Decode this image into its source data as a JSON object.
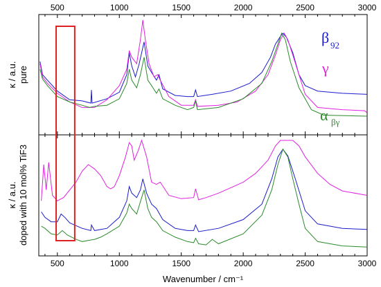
{
  "chart_data": [
    {
      "type": "line",
      "panel": "top",
      "ylabel_lines": [
        "κ / a.u.",
        "pure"
      ],
      "xlim": [
        350,
        3000
      ],
      "x_ticks": [
        500,
        1000,
        1500,
        2000,
        2500,
        3000
      ],
      "y_ticks": "none",
      "highlight_box_x": [
        490,
        640
      ],
      "legend": [
        {
          "main": "β",
          "sub": "92",
          "color": "#1a1acc"
        },
        {
          "main": "γ",
          "sub": "",
          "color": "#e020e0"
        },
        {
          "main": "α",
          "sub": "βγ",
          "color": "#2a8a2a"
        }
      ],
      "series": [
        {
          "name": "β92",
          "color": "#1a1acc",
          "points": [
            [
              360,
              0.62
            ],
            [
              380,
              0.5
            ],
            [
              420,
              0.45
            ],
            [
              500,
              0.35
            ],
            [
              600,
              0.27
            ],
            [
              700,
              0.26
            ],
            [
              770,
              0.24
            ],
            [
              775,
              0.36
            ],
            [
              780,
              0.24
            ],
            [
              900,
              0.28
            ],
            [
              1000,
              0.34
            ],
            [
              1060,
              0.5
            ],
            [
              1080,
              0.7
            ],
            [
              1100,
              0.58
            ],
            [
              1130,
              0.48
            ],
            [
              1160,
              0.6
            ],
            [
              1200,
              0.8
            ],
            [
              1230,
              0.58
            ],
            [
              1260,
              0.52
            ],
            [
              1300,
              0.45
            ],
            [
              1320,
              0.5
            ],
            [
              1350,
              0.37
            ],
            [
              1450,
              0.31
            ],
            [
              1550,
              0.3
            ],
            [
              1600,
              0.3
            ],
            [
              1615,
              0.36
            ],
            [
              1630,
              0.3
            ],
            [
              1750,
              0.32
            ],
            [
              1900,
              0.35
            ],
            [
              2050,
              0.42
            ],
            [
              2150,
              0.52
            ],
            [
              2220,
              0.66
            ],
            [
              2260,
              0.78
            ],
            [
              2300,
              0.85
            ],
            [
              2320,
              0.88
            ],
            [
              2350,
              0.84
            ],
            [
              2400,
              0.7
            ],
            [
              2450,
              0.5
            ],
            [
              2500,
              0.4
            ],
            [
              2600,
              0.35
            ],
            [
              2800,
              0.33
            ],
            [
              3000,
              0.32
            ]
          ]
        },
        {
          "name": "γ",
          "color": "#e020e0",
          "points": [
            [
              360,
              0.6
            ],
            [
              380,
              0.48
            ],
            [
              420,
              0.42
            ],
            [
              500,
              0.33
            ],
            [
              600,
              0.25
            ],
            [
              700,
              0.2
            ],
            [
              800,
              0.2
            ],
            [
              900,
              0.27
            ],
            [
              1000,
              0.4
            ],
            [
              1060,
              0.55
            ],
            [
              1080,
              0.72
            ],
            [
              1100,
              0.66
            ],
            [
              1140,
              0.6
            ],
            [
              1170,
              0.82
            ],
            [
              1190,
              1.0
            ],
            [
              1210,
              0.82
            ],
            [
              1240,
              0.6
            ],
            [
              1280,
              0.48
            ],
            [
              1310,
              0.5
            ],
            [
              1330,
              0.45
            ],
            [
              1400,
              0.3
            ],
            [
              1500,
              0.22
            ],
            [
              1600,
              0.22
            ],
            [
              1615,
              0.27
            ],
            [
              1630,
              0.21
            ],
            [
              1800,
              0.22
            ],
            [
              1950,
              0.25
            ],
            [
              2100,
              0.35
            ],
            [
              2200,
              0.5
            ],
            [
              2260,
              0.68
            ],
            [
              2300,
              0.82
            ],
            [
              2330,
              0.88
            ],
            [
              2360,
              0.82
            ],
            [
              2400,
              0.68
            ],
            [
              2450,
              0.5
            ],
            [
              2500,
              0.32
            ],
            [
              2600,
              0.2
            ],
            [
              2800,
              0.18
            ],
            [
              2980,
              0.17
            ],
            [
              3000,
              0.15
            ]
          ]
        },
        {
          "name": "αβγ",
          "color": "#2a8a2a",
          "points": [
            [
              360,
              0.55
            ],
            [
              380,
              0.46
            ],
            [
              420,
              0.4
            ],
            [
              500,
              0.3
            ],
            [
              600,
              0.25
            ],
            [
              700,
              0.22
            ],
            [
              760,
              0.2
            ],
            [
              800,
              0.21
            ],
            [
              900,
              0.22
            ],
            [
              1000,
              0.28
            ],
            [
              1060,
              0.42
            ],
            [
              1080,
              0.55
            ],
            [
              1100,
              0.45
            ],
            [
              1140,
              0.38
            ],
            [
              1170,
              0.5
            ],
            [
              1200,
              0.66
            ],
            [
              1230,
              0.45
            ],
            [
              1260,
              0.4
            ],
            [
              1300,
              0.33
            ],
            [
              1320,
              0.37
            ],
            [
              1350,
              0.28
            ],
            [
              1450,
              0.22
            ],
            [
              1550,
              0.18
            ],
            [
              1600,
              0.2
            ],
            [
              1615,
              0.26
            ],
            [
              1630,
              0.18
            ],
            [
              1800,
              0.2
            ],
            [
              2000,
              0.28
            ],
            [
              2150,
              0.42
            ],
            [
              2230,
              0.62
            ],
            [
              2280,
              0.78
            ],
            [
              2310,
              0.88
            ],
            [
              2340,
              0.82
            ],
            [
              2380,
              0.62
            ],
            [
              2450,
              0.38
            ],
            [
              2550,
              0.18
            ],
            [
              2650,
              0.13
            ],
            [
              3000,
              0.12
            ]
          ]
        }
      ]
    },
    {
      "type": "line",
      "panel": "bottom",
      "ylabel_lines": [
        "κ / a.u.",
        "doped with 10 mol% TiF3"
      ],
      "xlim": [
        350,
        3000
      ],
      "x_ticks": [
        500,
        1000,
        1500,
        2000,
        2500,
        3000
      ],
      "xlabel": "Wavenumber / cm⁻¹",
      "y_ticks": "none",
      "highlight_box_x": [
        490,
        640
      ],
      "series": [
        {
          "name": "γ",
          "color": "#e020e0",
          "points": [
            [
              370,
              0.45
            ],
            [
              390,
              0.78
            ],
            [
              410,
              0.55
            ],
            [
              430,
              0.8
            ],
            [
              460,
              0.5
            ],
            [
              500,
              0.45
            ],
            [
              550,
              0.48
            ],
            [
              600,
              0.55
            ],
            [
              650,
              0.62
            ],
            [
              700,
              0.72
            ],
            [
              750,
              0.78
            ],
            [
              800,
              0.74
            ],
            [
              850,
              0.68
            ],
            [
              900,
              0.58
            ],
            [
              930,
              0.56
            ],
            [
              960,
              0.58
            ],
            [
              1000,
              0.68
            ],
            [
              1050,
              0.85
            ],
            [
              1080,
              0.98
            ],
            [
              1100,
              0.95
            ],
            [
              1120,
              0.82
            ],
            [
              1150,
              0.9
            ],
            [
              1180,
              1.0
            ],
            [
              1220,
              0.85
            ],
            [
              1260,
              0.62
            ],
            [
              1300,
              0.6
            ],
            [
              1330,
              0.62
            ],
            [
              1400,
              0.5
            ],
            [
              1500,
              0.47
            ],
            [
              1600,
              0.48
            ],
            [
              1615,
              0.56
            ],
            [
              1640,
              0.46
            ],
            [
              1700,
              0.48
            ],
            [
              1800,
              0.52
            ],
            [
              1900,
              0.57
            ],
            [
              2000,
              0.62
            ],
            [
              2100,
              0.7
            ],
            [
              2200,
              0.82
            ],
            [
              2260,
              0.95
            ],
            [
              2300,
              1.0
            ],
            [
              2400,
              1.0
            ],
            [
              2450,
              0.95
            ],
            [
              2500,
              0.85
            ],
            [
              2600,
              0.7
            ],
            [
              2700,
              0.6
            ],
            [
              2800,
              0.54
            ],
            [
              3000,
              0.5
            ]
          ]
        },
        {
          "name": "β92",
          "color": "#1a1acc",
          "points": [
            [
              370,
              0.35
            ],
            [
              400,
              0.3
            ],
            [
              450,
              0.26
            ],
            [
              500,
              0.26
            ],
            [
              530,
              0.33
            ],
            [
              560,
              0.3
            ],
            [
              600,
              0.25
            ],
            [
              700,
              0.2
            ],
            [
              770,
              0.18
            ],
            [
              775,
              0.23
            ],
            [
              800,
              0.18
            ],
            [
              900,
              0.2
            ],
            [
              1000,
              0.3
            ],
            [
              1060,
              0.45
            ],
            [
              1080,
              0.58
            ],
            [
              1100,
              0.52
            ],
            [
              1140,
              0.48
            ],
            [
              1170,
              0.55
            ],
            [
              1190,
              0.65
            ],
            [
              1220,
              0.52
            ],
            [
              1260,
              0.42
            ],
            [
              1300,
              0.38
            ],
            [
              1350,
              0.28
            ],
            [
              1450,
              0.2
            ],
            [
              1550,
              0.18
            ],
            [
              1600,
              0.18
            ],
            [
              1615,
              0.23
            ],
            [
              1640,
              0.17
            ],
            [
              1800,
              0.2
            ],
            [
              2000,
              0.28
            ],
            [
              2150,
              0.42
            ],
            [
              2230,
              0.65
            ],
            [
              2280,
              0.85
            ],
            [
              2320,
              0.92
            ],
            [
              2360,
              0.86
            ],
            [
              2420,
              0.65
            ],
            [
              2500,
              0.36
            ],
            [
              2600,
              0.24
            ],
            [
              2800,
              0.2
            ],
            [
              3000,
              0.19
            ]
          ]
        },
        {
          "name": "αβγ",
          "color": "#2a8a2a",
          "points": [
            [
              370,
              0.22
            ],
            [
              400,
              0.2
            ],
            [
              450,
              0.15
            ],
            [
              500,
              0.14
            ],
            [
              540,
              0.18
            ],
            [
              580,
              0.14
            ],
            [
              650,
              0.1
            ],
            [
              700,
              0.08
            ],
            [
              800,
              0.1
            ],
            [
              850,
              0.12
            ],
            [
              900,
              0.15
            ],
            [
              1000,
              0.22
            ],
            [
              1060,
              0.34
            ],
            [
              1080,
              0.42
            ],
            [
              1100,
              0.38
            ],
            [
              1140,
              0.33
            ],
            [
              1180,
              0.48
            ],
            [
              1200,
              0.55
            ],
            [
              1230,
              0.38
            ],
            [
              1260,
              0.3
            ],
            [
              1300,
              0.26
            ],
            [
              1350,
              0.18
            ],
            [
              1450,
              0.12
            ],
            [
              1550,
              0.08
            ],
            [
              1600,
              0.07
            ],
            [
              1615,
              0.11
            ],
            [
              1640,
              0.06
            ],
            [
              1700,
              0.05
            ],
            [
              1750,
              0.1
            ],
            [
              1800,
              0.06
            ],
            [
              2000,
              0.15
            ],
            [
              2150,
              0.32
            ],
            [
              2230,
              0.55
            ],
            [
              2280,
              0.78
            ],
            [
              2320,
              0.92
            ],
            [
              2360,
              0.85
            ],
            [
              2400,
              0.65
            ],
            [
              2450,
              0.42
            ],
            [
              2500,
              0.2
            ],
            [
              2600,
              0.08
            ],
            [
              2800,
              0.04
            ],
            [
              3000,
              0.03
            ]
          ]
        }
      ]
    }
  ]
}
